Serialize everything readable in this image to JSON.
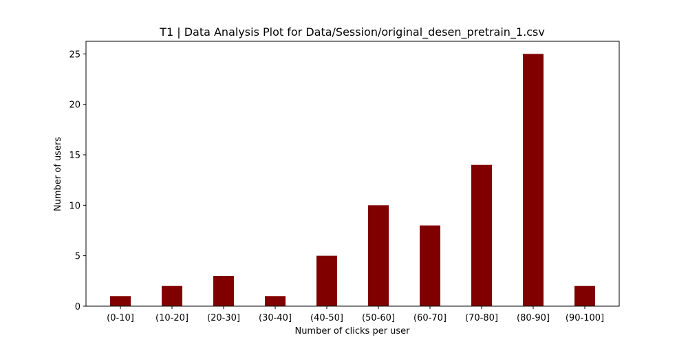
{
  "chart_data": {
    "type": "bar",
    "title": "T1 | Data Analysis Plot for Data/Session/original_desen_pretrain_1.csv",
    "xlabel": "Number of clicks per user",
    "ylabel": "Number of users",
    "categories": [
      "(0-10]",
      "(10-20]",
      "(20-30]",
      "(30-40]",
      "(40-50]",
      "(50-60]",
      "(60-70]",
      "(70-80]",
      "(80-90]",
      "(90-100]"
    ],
    "values": [
      1,
      2,
      3,
      1,
      5,
      10,
      8,
      14,
      25,
      2
    ],
    "ylim": [
      0,
      26.25
    ],
    "yticks": [
      0,
      5,
      10,
      15,
      20,
      25
    ],
    "bar_color": "#800000",
    "grid": false,
    "legend": "none"
  }
}
